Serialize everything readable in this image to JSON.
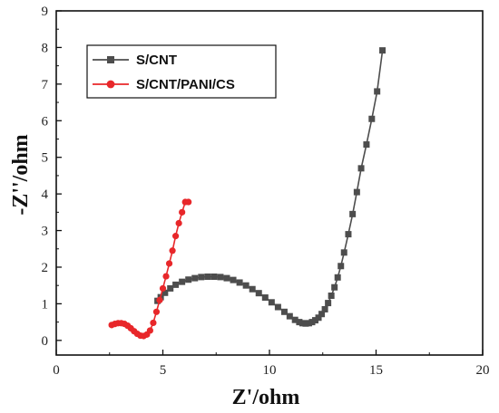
{
  "chart_data": {
    "type": "line",
    "xlabel": "Z'/ohm",
    "ylabel": "-Z''/ohm",
    "xlim": [
      0,
      20
    ],
    "ylim": [
      -0.4,
      9
    ],
    "xticks": [
      0,
      5,
      10,
      15,
      20
    ],
    "yticks": [
      0,
      1,
      2,
      3,
      4,
      5,
      6,
      7,
      8,
      9
    ],
    "legend": "top-left",
    "grid": false,
    "series": [
      {
        "name": "S/CNT",
        "color": "#4d4d4d",
        "marker": "square",
        "x": [
          4.75,
          4.9,
          5.1,
          5.35,
          5.6,
          5.9,
          6.2,
          6.5,
          6.8,
          7.1,
          7.4,
          7.7,
          8.0,
          8.3,
          8.6,
          8.9,
          9.2,
          9.5,
          9.8,
          10.1,
          10.4,
          10.7,
          10.95,
          11.2,
          11.4,
          11.55,
          11.7,
          11.85,
          12.0,
          12.15,
          12.3,
          12.45,
          12.6,
          12.75,
          12.9,
          13.05,
          13.2,
          13.35,
          13.5,
          13.7,
          13.9,
          14.1,
          14.3,
          14.55,
          14.8,
          15.05,
          15.3
        ],
        "y": [
          1.08,
          1.18,
          1.3,
          1.42,
          1.52,
          1.6,
          1.66,
          1.7,
          1.73,
          1.74,
          1.74,
          1.73,
          1.7,
          1.65,
          1.58,
          1.5,
          1.4,
          1.29,
          1.17,
          1.04,
          0.91,
          0.78,
          0.66,
          0.56,
          0.5,
          0.47,
          0.46,
          0.47,
          0.5,
          0.55,
          0.62,
          0.72,
          0.85,
          1.02,
          1.22,
          1.45,
          1.72,
          2.03,
          2.4,
          2.9,
          3.45,
          4.05,
          4.7,
          5.35,
          6.05,
          6.8,
          7.92
        ]
      },
      {
        "name": "S/CNT/PANI/CS",
        "color": "#e8272a",
        "marker": "circle",
        "x": [
          2.6,
          2.75,
          2.9,
          3.05,
          3.2,
          3.35,
          3.5,
          3.65,
          3.8,
          3.95,
          4.1,
          4.25,
          4.4,
          4.55,
          4.7,
          4.85,
          5.0,
          5.15,
          5.3,
          5.45,
          5.6,
          5.75,
          5.9,
          6.05,
          6.2
        ],
        "y": [
          0.42,
          0.45,
          0.47,
          0.47,
          0.45,
          0.4,
          0.33,
          0.25,
          0.18,
          0.13,
          0.12,
          0.16,
          0.27,
          0.48,
          0.78,
          1.1,
          1.42,
          1.75,
          2.1,
          2.45,
          2.85,
          3.2,
          3.5,
          3.78,
          3.78
        ]
      }
    ]
  }
}
